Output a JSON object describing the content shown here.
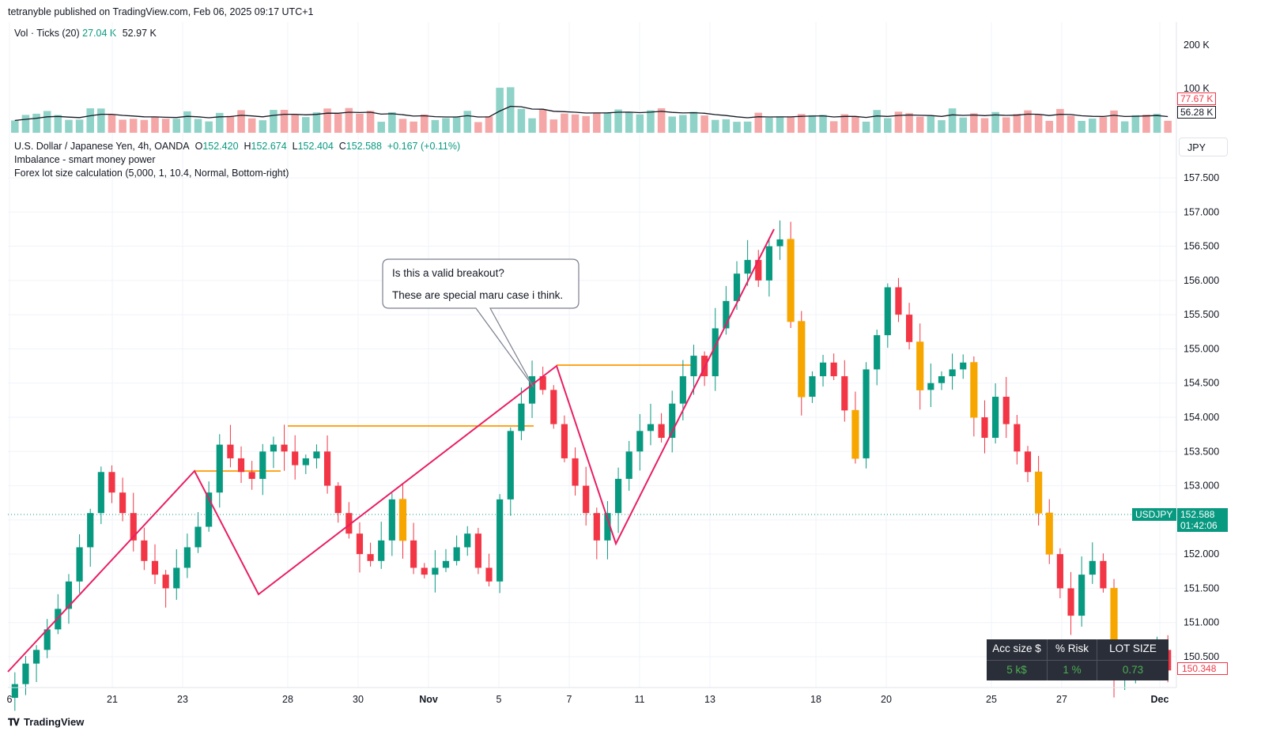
{
  "header": {
    "published": "tetranyble published on TradingView.com, Feb 06, 2025 09:17 UTC+1"
  },
  "volume_legend": {
    "label": "Vol · Ticks (20)",
    "value1": "27.04 K",
    "value2": "52.97 K"
  },
  "volume_axis": {
    "tick1": "200 K",
    "tick2": "100 K",
    "tag_red": "77.67 K",
    "tag_dark": "56.28 K"
  },
  "symbol_legend": {
    "name": "U.S. Dollar / Japanese Yen, 4h, OANDA",
    "o_label": "O",
    "o_value": "152.420",
    "h_label": "H",
    "h_value": "152.674",
    "l_label": "L",
    "l_value": "152.404",
    "c_label": "C",
    "c_value": "152.588",
    "change": "+0.167 (+0.11%)",
    "indicator1": "Imbalance - smart money power",
    "indicator2": "Forex lot size calculation (5,000, 1, 10.4, Normal, Bottom-right)"
  },
  "currency_badge": "JPY",
  "price_tag": {
    "symbol": "USDJPY",
    "price": "152.588",
    "countdown": "01:42:06"
  },
  "red_price_tag": "150.348",
  "callout": {
    "line1": "Is this a valid breakout?",
    "line2": "These are special maru case i think."
  },
  "lot_table": {
    "headers": [
      "Acc size $",
      "% Risk",
      "LOT SIZE"
    ],
    "values": [
      "5 k$",
      "1 %",
      "0.73"
    ]
  },
  "footer": {
    "brand": "TradingView"
  },
  "colors": {
    "up": "#089981",
    "down": "#f23645",
    "vol_up": "#8fd3c8",
    "vol_down": "#f5a6a6",
    "marubozu": "#f7a600",
    "trendline": "#e91e63",
    "level": "#ff9800"
  },
  "chart_data": {
    "type": "candlestick",
    "symbol": "USDJPY",
    "timeframe": "4h",
    "y_axis": {
      "ticks": [
        "157.500",
        "157.000",
        "156.500",
        "156.000",
        "155.500",
        "155.000",
        "154.500",
        "154.000",
        "153.500",
        "153.000",
        "152.500",
        "152.000",
        "151.500",
        "151.000",
        "150.500"
      ],
      "ylim": [
        150.25,
        157.75
      ]
    },
    "x_axis": {
      "ticks": [
        "6",
        "21",
        "23",
        "28",
        "30",
        "Nov",
        "5",
        "7",
        "11",
        "13",
        "18",
        "20",
        "25",
        "27",
        "Dec"
      ]
    },
    "approx_closes": [
      150.1,
      150.4,
      150.6,
      150.9,
      151.2,
      151.6,
      152.1,
      152.6,
      153.2,
      152.9,
      152.6,
      152.2,
      151.9,
      151.7,
      151.5,
      151.8,
      152.1,
      152.4,
      152.9,
      153.6,
      153.4,
      153.2,
      153.1,
      153.5,
      153.6,
      153.5,
      153.3,
      153.4,
      153.5,
      153.0,
      152.6,
      152.3,
      152.0,
      151.9,
      152.2,
      152.8,
      152.2,
      151.8,
      151.7,
      151.8,
      151.9,
      152.1,
      152.3,
      151.8,
      151.6,
      152.8,
      153.8,
      154.2,
      154.6,
      154.4,
      153.9,
      153.4,
      153.0,
      152.6,
      152.2,
      152.6,
      153.1,
      153.5,
      153.8,
      153.9,
      153.7,
      154.2,
      154.6,
      154.9,
      154.6,
      155.3,
      155.7,
      156.1,
      156.3,
      156.0,
      156.5,
      156.6,
      155.4,
      154.3,
      154.6,
      154.8,
      154.6,
      154.1,
      153.4,
      154.7,
      155.2,
      155.9,
      155.5,
      155.1,
      154.4,
      154.5,
      154.6,
      154.7,
      154.8,
      154.0,
      153.7,
      154.3,
      153.9,
      153.5,
      153.2,
      152.6,
      152.0,
      151.5,
      151.1,
      151.7,
      151.9,
      151.5,
      150.2,
      150.2,
      150.5,
      150.4,
      150.6,
      150.3
    ],
    "annotations": {
      "trendline_pivots": [
        [
          0,
          150.2
        ],
        [
          14,
          153.2
        ],
        [
          19,
          151.4
        ],
        [
          40,
          154.7
        ],
        [
          46,
          152.1
        ],
        [
          56,
          156.7
        ]
      ],
      "horizontal_levels": [
        153.2,
        153.8,
        154.75
      ],
      "callout_text": [
        "Is this a valid breakout?",
        "These are special maru case i think."
      ]
    },
    "current_price": 152.588
  }
}
